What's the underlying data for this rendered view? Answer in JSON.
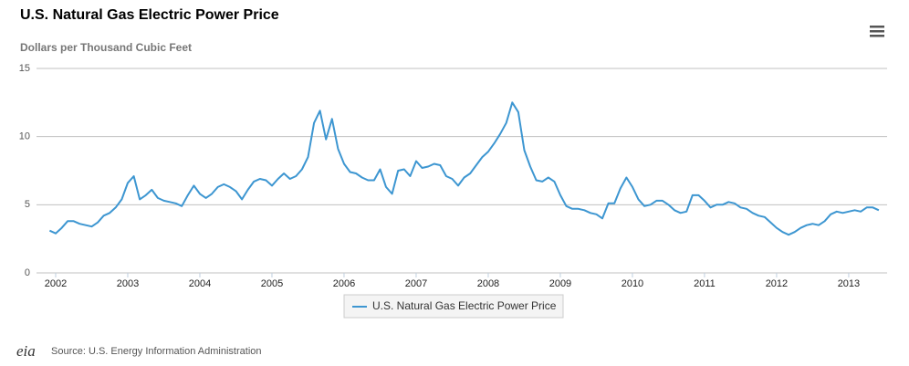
{
  "chart_data": {
    "type": "line",
    "title": "U.S. Natural Gas Electric Power Price",
    "subtitle": "Dollars per Thousand Cubic Feet",
    "categories": [
      null,
      "2002",
      null,
      null,
      null,
      null,
      null,
      null,
      null,
      null,
      null,
      null,
      null,
      "2003",
      null,
      null,
      null,
      null,
      null,
      null,
      null,
      null,
      null,
      null,
      null,
      "2004",
      null,
      null,
      null,
      null,
      null,
      null,
      null,
      null,
      null,
      null,
      null,
      "2005",
      null,
      null,
      null,
      null,
      null,
      null,
      null,
      null,
      null,
      null,
      null,
      "2006",
      null,
      null,
      null,
      null,
      null,
      null,
      null,
      null,
      null,
      null,
      null,
      "2007",
      null,
      null,
      null,
      null,
      null,
      null,
      null,
      null,
      null,
      null,
      null,
      "2008",
      null,
      null,
      null,
      null,
      null,
      null,
      null,
      null,
      null,
      null,
      null,
      "2009",
      null,
      null,
      null,
      null,
      null,
      null,
      null,
      null,
      null,
      null,
      null,
      "2010",
      null,
      null,
      null,
      null,
      null,
      null,
      null,
      null,
      null,
      null,
      null,
      "2011",
      null,
      null,
      null,
      null,
      null,
      null,
      null,
      null,
      null,
      null,
      null,
      "2012",
      null,
      null,
      null,
      null,
      null,
      null,
      null,
      null,
      null,
      null,
      null,
      "2013",
      null,
      null,
      null,
      null,
      null
    ],
    "series": [
      {
        "name": "U.S. Natural Gas Electric Power Price",
        "color": "#3d96d1",
        "values": [
          3.1,
          2.9,
          3.3,
          3.8,
          3.8,
          3.6,
          3.5,
          3.4,
          3.7,
          4.2,
          4.4,
          4.8,
          5.4,
          6.6,
          7.1,
          5.4,
          5.7,
          6.1,
          5.5,
          5.3,
          5.2,
          5.1,
          4.9,
          5.7,
          6.4,
          5.8,
          5.5,
          5.8,
          6.3,
          6.5,
          6.3,
          6.0,
          5.4,
          6.1,
          6.7,
          6.9,
          6.8,
          6.4,
          6.9,
          7.3,
          6.9,
          7.1,
          7.6,
          8.5,
          11.0,
          11.9,
          9.8,
          11.3,
          9.1,
          8.0,
          7.4,
          7.3,
          7.0,
          6.8,
          6.8,
          7.6,
          6.3,
          5.8,
          7.5,
          7.6,
          7.1,
          8.2,
          7.7,
          7.8,
          8.0,
          7.9,
          7.1,
          6.9,
          6.4,
          7.0,
          7.3,
          7.9,
          8.5,
          8.9,
          9.5,
          10.2,
          11.0,
          12.5,
          11.8,
          9.0,
          7.8,
          6.8,
          6.7,
          7.0,
          6.7,
          5.7,
          4.9,
          4.7,
          4.7,
          4.6,
          4.4,
          4.3,
          4.0,
          5.1,
          5.1,
          6.2,
          7.0,
          6.3,
          5.4,
          4.9,
          5.0,
          5.3,
          5.3,
          5.0,
          4.6,
          4.4,
          4.5,
          5.7,
          5.7,
          5.3,
          4.8,
          5.0,
          5.0,
          5.2,
          5.1,
          4.8,
          4.7,
          4.4,
          4.2,
          4.1,
          3.7,
          3.3,
          3.0,
          2.8,
          3.0,
          3.3,
          3.5,
          3.6,
          3.5,
          3.8,
          4.3,
          4.5,
          4.4,
          4.5,
          4.6,
          4.5,
          4.8,
          4.8,
          4.6
        ]
      }
    ],
    "ylim": [
      0,
      15
    ],
    "yticks": [
      0,
      5,
      10,
      15
    ],
    "grid": true,
    "source": "Source: U.S. Energy Information Administration",
    "logo": "eia"
  }
}
